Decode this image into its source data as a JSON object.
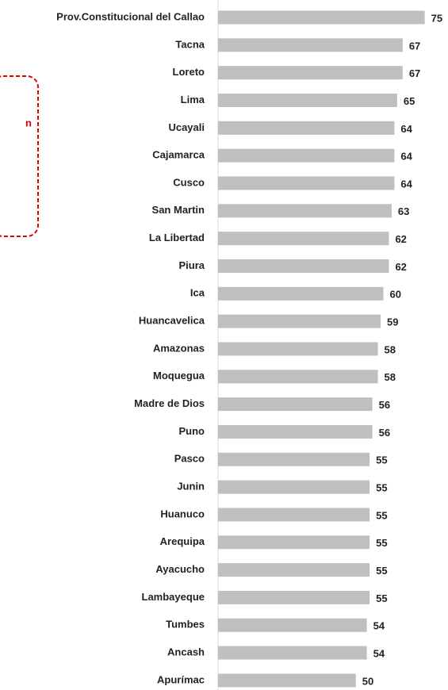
{
  "chart_data": {
    "type": "bar",
    "orientation": "horizontal",
    "categories": [
      "Prov.Constitucional del Callao",
      "Tacna",
      "Loreto",
      "Lima",
      "Ucayali",
      "Cajamarca",
      "Cusco",
      "San Martin",
      "La Libertad",
      "Piura",
      "Ica",
      "Huancavelica",
      "Amazonas",
      "Moquegua",
      "Madre de Dios",
      "Puno",
      "Pasco",
      "Junin",
      "Huanuco",
      "Arequipa",
      "Ayacucho",
      "Lambayeque",
      "Tumbes",
      "Ancash",
      "Apurímac"
    ],
    "values": [
      75,
      67,
      67,
      65,
      64,
      64,
      64,
      63,
      62,
      62,
      60,
      59,
      58,
      58,
      56,
      56,
      55,
      55,
      55,
      55,
      55,
      55,
      54,
      54,
      50
    ],
    "color": "#bfbfbf",
    "xlim": [
      0,
      80
    ],
    "annotation": "n",
    "annotation_color": "#e00000"
  }
}
